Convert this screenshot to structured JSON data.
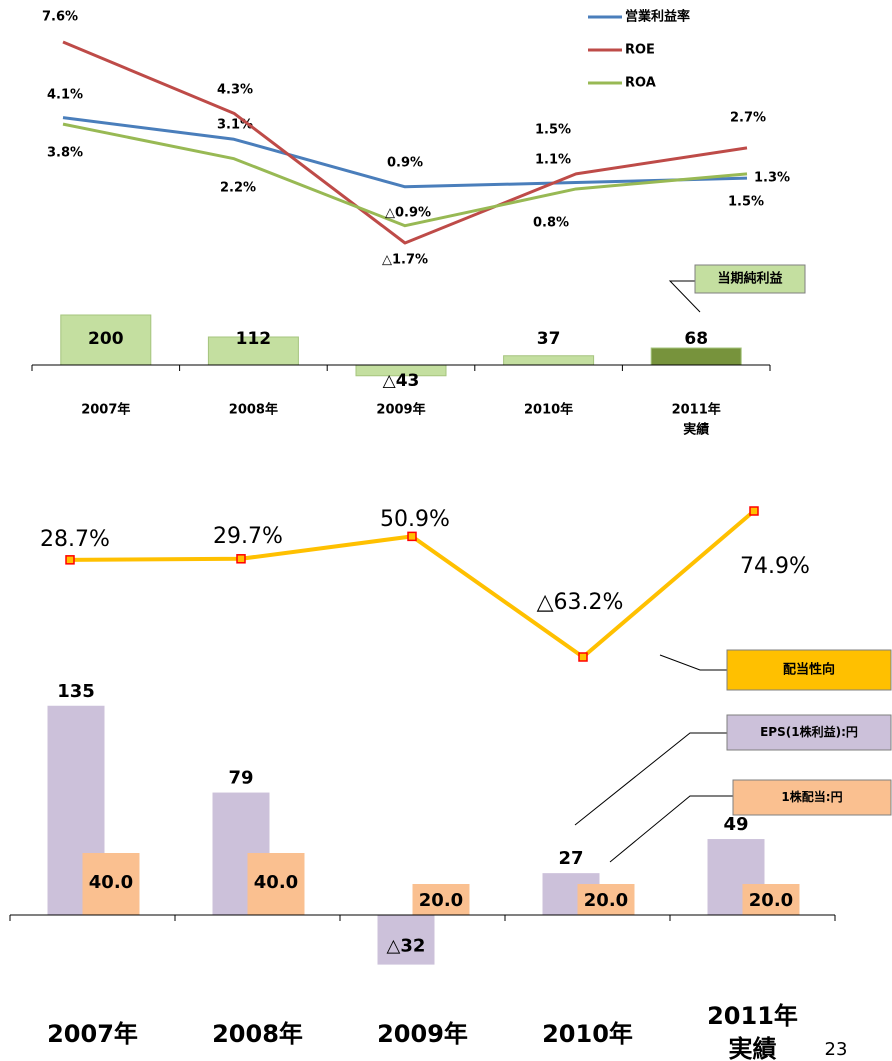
{
  "chart_data": [
    {
      "type": "line",
      "series": [
        {
          "name": "営業利益率",
          "color": "#4a7ebb",
          "values": [
            4.1,
            3.1,
            0.9,
            1.1,
            1.3
          ],
          "value_labels": [
            "4.1%",
            "3.1%",
            "0.9%",
            "1.1%",
            "1.3%"
          ]
        },
        {
          "name": "ROE",
          "color": "#be4b48",
          "values": [
            7.6,
            4.3,
            -1.7,
            1.5,
            2.7
          ],
          "value_labels": [
            "7.6%",
            "4.3%",
            "△1.7%",
            "1.5%",
            "2.7%"
          ]
        },
        {
          "name": "ROA",
          "color": "#98b954",
          "values": [
            3.8,
            2.2,
            -0.9,
            0.8,
            1.5
          ],
          "value_labels": [
            "3.8%",
            "2.2%",
            "△0.9%",
            "0.8%",
            "1.5%"
          ]
        }
      ],
      "legend": "upper right"
    },
    {
      "type": "bar",
      "categories": [
        "2007年",
        "2008年",
        "2009年",
        "2010年",
        "2011年"
      ],
      "note": "実績",
      "series": [
        {
          "name": "当期純利益",
          "colors": [
            "#c4dfa0",
            "#c4dfa0",
            "#c4dfa0",
            "#c4dfa0",
            "#77933c"
          ],
          "values": [
            200,
            112,
            -43,
            37,
            68
          ],
          "value_labels": [
            "200",
            "112",
            "△43",
            "37",
            "68"
          ]
        }
      ]
    },
    {
      "type": "line",
      "series": [
        {
          "name": "配当性向",
          "color": "#ffc000",
          "marker_color": "#ff0000",
          "values": [
            28.7,
            29.7,
            50.9,
            -63.2,
            74.9
          ],
          "value_labels": [
            "28.7%",
            "29.7%",
            "50.9%",
            "△63.2%",
            "74.9%"
          ]
        }
      ]
    },
    {
      "type": "bar",
      "categories": [
        "2007年",
        "2008年",
        "2009年",
        "2010年",
        "2011年"
      ],
      "note": "実績",
      "series": [
        {
          "name": "EPS(1株利益):円",
          "colors": [
            "#ccc1da",
            "#ccc1da",
            "#ccc1da",
            "#ccc1da",
            "#ccc1da"
          ],
          "values": [
            135,
            79,
            -32,
            27,
            49
          ],
          "value_labels": [
            "135",
            "79",
            "△32",
            "27",
            "49"
          ]
        },
        {
          "name": "1株配当:円",
          "colors": [
            "#fac090",
            "#fac090",
            "#fac090",
            "#fac090",
            "#fac090"
          ],
          "values": [
            40,
            40,
            20,
            20,
            20
          ],
          "value_labels": [
            "40.0",
            "40.0",
            "20.0",
            "20.0",
            "20.0"
          ]
        }
      ]
    }
  ],
  "page_number": "23"
}
